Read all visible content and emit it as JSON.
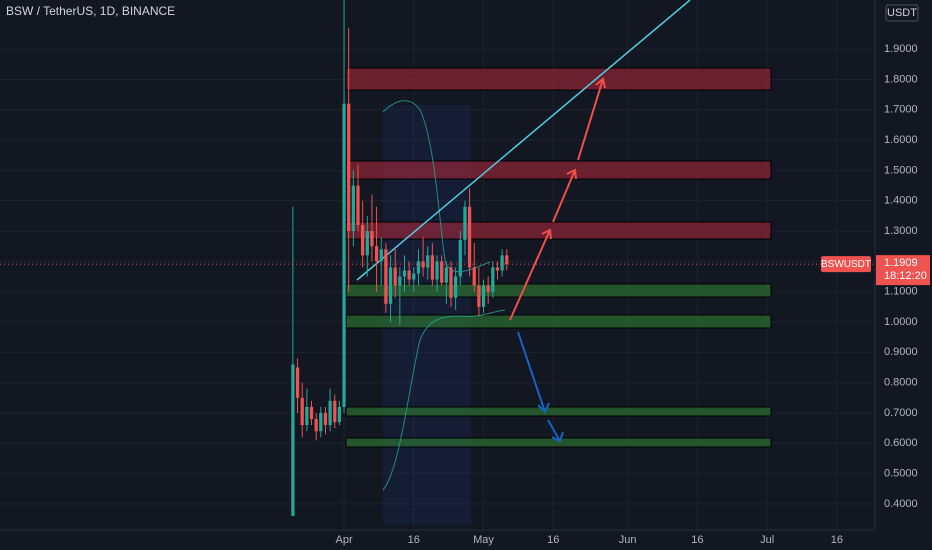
{
  "chart_data": {
    "type": "candlestick",
    "title": "BSW / TetherUS, 1D, BINANCE",
    "currency": "USDT",
    "symbol": "BSWUSDT",
    "last_price": 1.1909,
    "countdown": "18:12:20",
    "up_color": "#26a69a",
    "down_color": "#ef5350",
    "grid": true,
    "x": [
      -11,
      -10,
      -9,
      -8,
      -7,
      -6,
      -5,
      -4,
      -3,
      -2,
      -1,
      0,
      1,
      2,
      3,
      4,
      5,
      6,
      7,
      8,
      9,
      10,
      11,
      12,
      13,
      14,
      15,
      16,
      17,
      18,
      19,
      20,
      21,
      22,
      23,
      24,
      25,
      26,
      27,
      28,
      29,
      30,
      31,
      32,
      33,
      34,
      35
    ],
    "open": [
      0.36,
      0.85,
      0.75,
      0.66,
      0.72,
      0.68,
      0.64,
      0.7,
      0.66,
      0.74,
      0.67,
      0.72,
      1.72,
      1.3,
      1.45,
      1.32,
      1.22,
      1.3,
      1.25,
      1.2,
      1.24,
      1.06,
      1.18,
      1.12,
      1.15,
      1.17,
      1.14,
      1.16,
      1.2,
      1.18,
      1.22,
      1.14,
      1.2,
      1.13,
      1.18,
      1.08,
      1.15,
      1.27,
      1.38,
      1.18,
      1.12,
      1.05,
      1.12,
      1.1,
      1.18,
      1.17,
      1.22
    ],
    "high": [
      1.38,
      0.88,
      0.8,
      0.78,
      0.74,
      0.7,
      0.72,
      0.72,
      0.78,
      0.76,
      0.74,
      2.1,
      1.97,
      1.5,
      1.52,
      1.4,
      1.35,
      1.42,
      1.38,
      1.28,
      1.26,
      1.22,
      1.24,
      1.18,
      1.22,
      1.2,
      1.18,
      1.24,
      1.28,
      1.25,
      1.26,
      1.22,
      1.22,
      1.2,
      1.2,
      1.18,
      1.3,
      1.4,
      1.44,
      1.26,
      1.18,
      1.14,
      1.15,
      1.2,
      1.2,
      1.24,
      1.24
    ],
    "low": [
      0.36,
      0.7,
      0.62,
      0.64,
      0.66,
      0.61,
      0.62,
      0.63,
      0.64,
      0.65,
      0.66,
      0.7,
      1.1,
      1.25,
      1.3,
      1.18,
      1.15,
      1.2,
      1.1,
      1.12,
      1.03,
      1.0,
      1.08,
      0.99,
      1.1,
      1.12,
      1.1,
      1.12,
      1.15,
      1.14,
      1.12,
      1.1,
      1.12,
      1.06,
      1.05,
      1.04,
      1.12,
      1.22,
      1.15,
      1.1,
      1.02,
      1.03,
      1.06,
      1.08,
      1.14,
      1.15,
      1.17
    ],
    "close": [
      0.86,
      0.75,
      0.66,
      0.72,
      0.68,
      0.64,
      0.7,
      0.66,
      0.74,
      0.67,
      0.72,
      1.72,
      1.3,
      1.45,
      1.32,
      1.22,
      1.3,
      1.25,
      1.2,
      1.24,
      1.06,
      1.18,
      1.12,
      1.15,
      1.17,
      1.14,
      1.16,
      1.2,
      1.18,
      1.22,
      1.14,
      1.2,
      1.13,
      1.18,
      1.08,
      1.15,
      1.27,
      1.38,
      1.18,
      1.12,
      1.05,
      1.12,
      1.1,
      1.18,
      1.17,
      1.22,
      1.1909
    ],
    "xlim": [
      -74,
      114.2
    ],
    "ylim": [
      0.314,
      2.062
    ],
    "xticks": [
      {
        "value": 0,
        "label": "Apr"
      },
      {
        "value": 15,
        "label": "16"
      },
      {
        "value": 30,
        "label": "May"
      },
      {
        "value": 45,
        "label": "16"
      },
      {
        "value": 61,
        "label": "Jun"
      },
      {
        "value": 76,
        "label": "16"
      },
      {
        "value": 91,
        "label": "Jul"
      },
      {
        "value": 106,
        "label": "16"
      }
    ],
    "yticks": [
      {
        "value": 0.4,
        "label": "0.4000"
      },
      {
        "value": 0.5,
        "label": "0.5000"
      },
      {
        "value": 0.6,
        "label": "0.6000"
      },
      {
        "value": 0.7,
        "label": "0.7000"
      },
      {
        "value": 0.8,
        "label": "0.8000"
      },
      {
        "value": 0.9,
        "label": "0.9000"
      },
      {
        "value": 1.0,
        "label": "1.0000"
      },
      {
        "value": 1.1,
        "label": "1.1000"
      },
      {
        "value": 1.2,
        "label": "1.2000"
      },
      {
        "value": 1.3,
        "label": "1.3000"
      },
      {
        "value": 1.4,
        "label": "1.4000"
      },
      {
        "value": 1.5,
        "label": "1.5000"
      },
      {
        "value": 1.6,
        "label": "1.6000"
      },
      {
        "value": 1.7,
        "label": "1.7000"
      },
      {
        "value": 1.8,
        "label": "1.8000"
      },
      {
        "value": 1.9,
        "label": "1.9000"
      }
    ]
  }
}
